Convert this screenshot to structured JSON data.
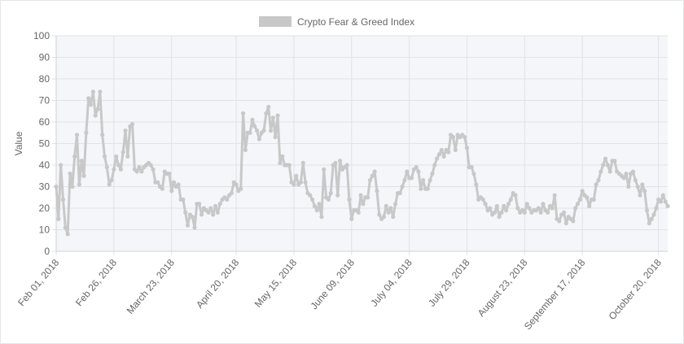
{
  "chart_data": {
    "type": "line",
    "title": "",
    "xlabel": "",
    "ylabel": "Value",
    "ylim": [
      0,
      100
    ],
    "yticks": [
      0,
      10,
      20,
      30,
      40,
      50,
      60,
      70,
      80,
      90,
      100
    ],
    "grid": true,
    "legend_position": "top-center",
    "background": "#f5f6fa",
    "grid_color": "#e0e2e6",
    "line_color": "#c8c8c8",
    "x_tick_labels": [
      "Feb 01, 2018",
      "Feb 26, 2018",
      "March 23, 2018",
      "April 20, 2018",
      "May 15, 2018",
      "June 09, 2018",
      "July 04, 2018",
      "July 29, 2018",
      "August 23, 2018",
      "September 17, 2018",
      "October 20, 2018"
    ],
    "x_tick_positions": [
      0,
      25,
      50,
      78,
      103,
      128,
      153,
      178,
      203,
      228,
      261
    ],
    "series": [
      {
        "name": "Crypto Fear & Greed Index",
        "values": [
          30,
          15,
          40,
          24,
          11,
          8,
          36,
          30,
          44,
          54,
          31,
          42,
          35,
          55,
          71,
          68,
          74,
          63,
          66,
          74,
          54,
          44,
          39,
          31,
          33,
          38,
          44,
          40,
          38,
          46,
          56,
          44,
          58,
          59,
          38,
          37,
          39,
          37,
          39,
          40,
          41,
          40,
          38,
          32,
          32,
          30,
          29,
          37,
          36,
          36,
          28,
          32,
          30,
          31,
          24,
          24,
          18,
          12,
          17,
          16,
          11,
          22,
          22,
          17,
          20,
          19,
          18,
          20,
          17,
          21,
          18,
          22,
          24,
          25,
          24,
          26,
          27,
          32,
          31,
          28,
          29,
          64,
          47,
          55,
          55,
          61,
          58,
          56,
          52,
          55,
          56,
          64,
          67,
          56,
          62,
          53,
          63,
          41,
          44,
          40,
          40,
          40,
          32,
          31,
          35,
          31,
          32,
          41,
          32,
          27,
          26,
          24,
          21,
          19,
          22,
          16,
          38,
          25,
          24,
          27,
          40,
          41,
          26,
          42,
          38,
          39,
          40,
          24,
          15,
          19,
          19,
          18,
          26,
          22,
          25,
          25,
          33,
          35,
          37,
          28,
          17,
          15,
          16,
          21,
          18,
          20,
          16,
          22,
          27,
          27,
          30,
          33,
          37,
          34,
          34,
          38,
          39,
          37,
          29,
          33,
          29,
          29,
          33,
          36,
          40,
          43,
          45,
          47,
          44,
          47,
          46,
          54,
          53,
          47,
          54,
          53,
          54,
          53,
          48,
          39,
          39,
          36,
          31,
          24,
          25,
          24,
          22,
          19,
          20,
          17,
          18,
          21,
          16,
          18,
          21,
          19,
          22,
          24,
          27,
          26,
          20,
          18,
          19,
          18,
          22,
          20,
          18,
          19,
          19,
          20,
          18,
          22,
          19,
          18,
          21,
          20,
          26,
          15,
          14,
          17,
          18,
          13,
          16,
          15,
          14,
          20,
          22,
          24,
          28,
          26,
          25,
          21,
          24,
          24,
          31,
          33,
          37,
          40,
          43,
          40,
          37,
          42,
          42,
          37,
          36,
          35,
          34,
          36,
          30,
          36,
          37,
          33,
          30,
          26,
          31,
          28,
          19,
          13,
          15,
          17,
          20,
          24,
          23,
          26,
          23,
          21
        ]
      }
    ]
  }
}
